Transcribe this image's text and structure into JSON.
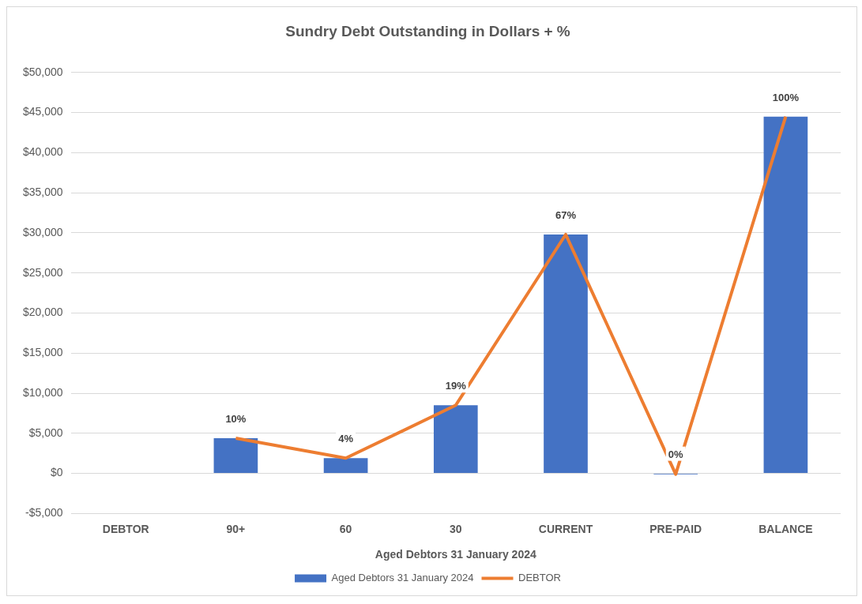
{
  "chart_data": {
    "type": "bar",
    "title": "Sundry Debt Outstanding in Dollars + %",
    "xlabel": "Aged Debtors 31 January 2024",
    "categories": [
      "DEBTOR",
      "90+",
      "60",
      "30",
      "CURRENT",
      "PRE-PAID",
      "BALANCE"
    ],
    "series": [
      {
        "name": "Aged Debtors 31 January 2024",
        "color": "#4472c4",
        "values": [
          null,
          4400,
          1900,
          8500,
          29800,
          -100,
          44500
        ]
      },
      {
        "name": "DEBTOR",
        "type": "line",
        "color": "#ed7d31",
        "values": [
          null,
          4400,
          1900,
          8500,
          29800,
          -100,
          44500
        ]
      }
    ],
    "annotations": [
      {
        "text": "10%",
        "x": "90+",
        "y": 4400
      },
      {
        "text": "4%",
        "x": "60",
        "y": 1900
      },
      {
        "text": "19%",
        "x": "30",
        "y": 8500
      },
      {
        "text": "67%",
        "x": "CURRENT",
        "y": 29800
      },
      {
        "text": "0%",
        "x": "PRE-PAID",
        "y": -100
      },
      {
        "text": "100%",
        "x": "BALANCE",
        "y": 44500
      }
    ],
    "ylim": [
      -5000,
      50000
    ],
    "yticks": [
      {
        "value": -5000,
        "label": "-$5,000"
      },
      {
        "value": 0,
        "label": "$0"
      },
      {
        "value": 5000,
        "label": "$5,000"
      },
      {
        "value": 10000,
        "label": "$10,000"
      },
      {
        "value": 15000,
        "label": "$15,000"
      },
      {
        "value": 20000,
        "label": "$20,000"
      },
      {
        "value": 25000,
        "label": "$25,000"
      },
      {
        "value": 30000,
        "label": "$30,000"
      },
      {
        "value": 35000,
        "label": "$35,000"
      },
      {
        "value": 40000,
        "label": "$40,000"
      },
      {
        "value": 45000,
        "label": "$45,000"
      },
      {
        "value": 50000,
        "label": "$50,000"
      }
    ],
    "grid": "y",
    "legend": "bottom",
    "marker": "none",
    "line_style": "solid"
  }
}
